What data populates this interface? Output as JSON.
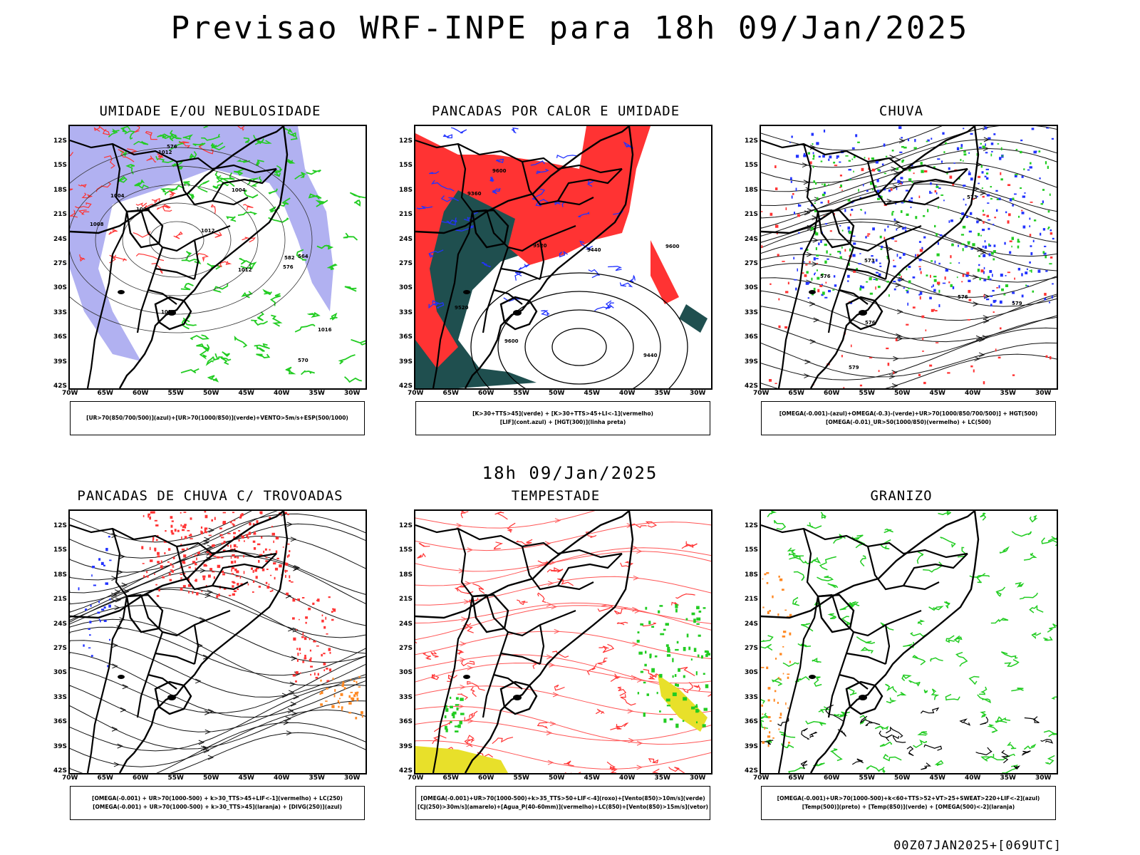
{
  "header": {
    "title": "Previsao WRF-INPE  para 18h 09/Jan/2025",
    "mid_title": "18h 09/Jan/2025",
    "footer": "00Z07JAN2025+[069UTC]"
  },
  "axes": {
    "lat_labels": [
      "12S",
      "15S",
      "18S",
      "21S",
      "24S",
      "27S",
      "30S",
      "33S",
      "36S",
      "39S",
      "42S"
    ],
    "lon_labels": [
      "70W",
      "65W",
      "60W",
      "55W",
      "50W",
      "45W",
      "40W",
      "35W",
      "30W"
    ]
  },
  "panels": [
    {
      "title": "UMIDADE E/OU NEBULOSIDADE",
      "legend": [
        "[UR>70(850/700/500)](azul)+[UR>70(1000/850)](verde)+VENTO>5m/s+ESP(500/1000)"
      ],
      "contour_labels": [
        "1008",
        "1004",
        "1012",
        "1012",
        "1016",
        "1004",
        "1008",
        "1012",
        "1016",
        "576",
        "576",
        "582",
        "570",
        "564"
      ]
    },
    {
      "title": "PANCADAS POR CALOR E UMIDADE",
      "legend": [
        "[K>30+TTS>45](verde) + [K>30+TTS>45+LI<-1](vermelho)",
        "[LIF](cont.azul) + [HGT(300)](linha preta)"
      ],
      "contour_labels": [
        "9600",
        "9600",
        "9520",
        "9440",
        "9520",
        "9360",
        "9440",
        "9600"
      ]
    },
    {
      "title": "CHUVA",
      "legend": [
        "[OMEGA(-0.001)-(azul)+OMEGA(-0.3)-(verde)+UR>70(1000/850/700/500)] + HGT(500)",
        "[OMEGA(-0.01)_UR>50(1000/850)(vermelho) + LC(500)"
      ],
      "contour_labels": [
        "579",
        "576",
        "573",
        "576",
        "579",
        "573",
        "576"
      ]
    },
    {
      "title": "PANCADAS DE CHUVA C/ TROVOADAS",
      "legend": [
        "[OMEGA(-0.001) + UR>70(1000-500) + k>30_TTS>45+LIF<-1](vermelho) + LC(250)",
        "[OMEGA(-0.001) + UR>70(1000-500) + k>30_TTS>45](laranja) + [DIVG(250)](azul)"
      ],
      "contour_labels": []
    },
    {
      "title": "TEMPESTADE",
      "legend": [
        "[OMEGA(-0.001)+UR>70(1000-500)+k>35_TTS>50+LIF<-4](roxo)+[Vento(850)>10m/s](verde)",
        "[CJ(250)>30m/s](amarelo)+[Agua_P(40-60mm)](vermelho)+LC(850)+[Vento(850)>15m/s](vetor)"
      ],
      "contour_labels": []
    },
    {
      "title": "GRANIZO",
      "legend": [
        "[OMEGA(-0.001)+UR>70(1000-500)+k<60+TTS>52+VT>25+SWEAT>220+LIF<-2](azul)",
        "[Temp(500)](preto) + [Temp(850)](verde) + [OMEGA(500)<-2](laranja)"
      ],
      "contour_labels": []
    }
  ],
  "colors": {
    "blue_shade": "#a3a3ee",
    "green": "#22cc22",
    "red": "#ff3333",
    "dark_teal": "#1f4f4f",
    "blue": "#2233ff",
    "orange": "#ff8822",
    "yellow": "#e8e02a"
  }
}
